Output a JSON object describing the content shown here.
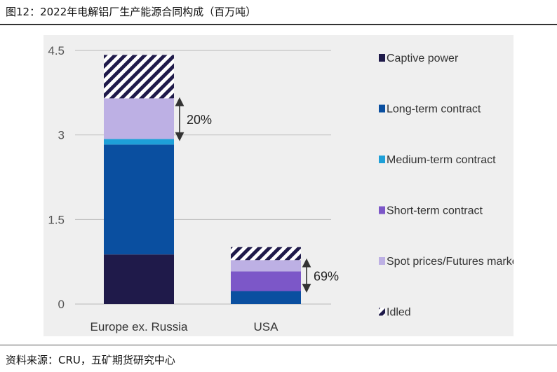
{
  "figure": {
    "title": "图12：2022年电解铝厂生产能源合同构成（百万吨）",
    "source": "资料来源：CRU，五矿期货研究中心"
  },
  "chart_data": {
    "type": "bar",
    "stacked": true,
    "categories": [
      "Europe ex. Russia",
      "USA"
    ],
    "ylim": [
      0,
      4.5
    ],
    "yticks": [
      "4.5",
      "3",
      "1.5",
      "0"
    ],
    "grid": true,
    "legend_position": "right",
    "series": [
      {
        "name": "Captive power",
        "color": "#1f1a4a",
        "pattern": "solid",
        "values": [
          0.88,
          0
        ]
      },
      {
        "name": "Long-term contract",
        "color": "#0a4fa0",
        "pattern": "solid",
        "values": [
          1.95,
          0.23
        ]
      },
      {
        "name": "Medium-term contract",
        "color": "#1ea0d8",
        "pattern": "solid",
        "values": [
          0.1,
          0
        ]
      },
      {
        "name": "Short-term contract",
        "color": "#7c57c8",
        "pattern": "solid",
        "values": [
          0,
          0.35
        ]
      },
      {
        "name": "Spot prices/Futures market",
        "color": "#bdb0e4",
        "pattern": "solid",
        "values": [
          0.72,
          0.2
        ]
      },
      {
        "name": "Idled",
        "color": "#1f1a4a",
        "pattern": "hatched",
        "values": [
          0.77,
          0.23
        ]
      }
    ],
    "annotations": [
      {
        "text": "20%",
        "category": "Europe ex. Russia",
        "range": [
          2.92,
          3.64
        ]
      },
      {
        "text": "69%",
        "category": "USA",
        "range": [
          0.23,
          0.78
        ]
      }
    ]
  }
}
